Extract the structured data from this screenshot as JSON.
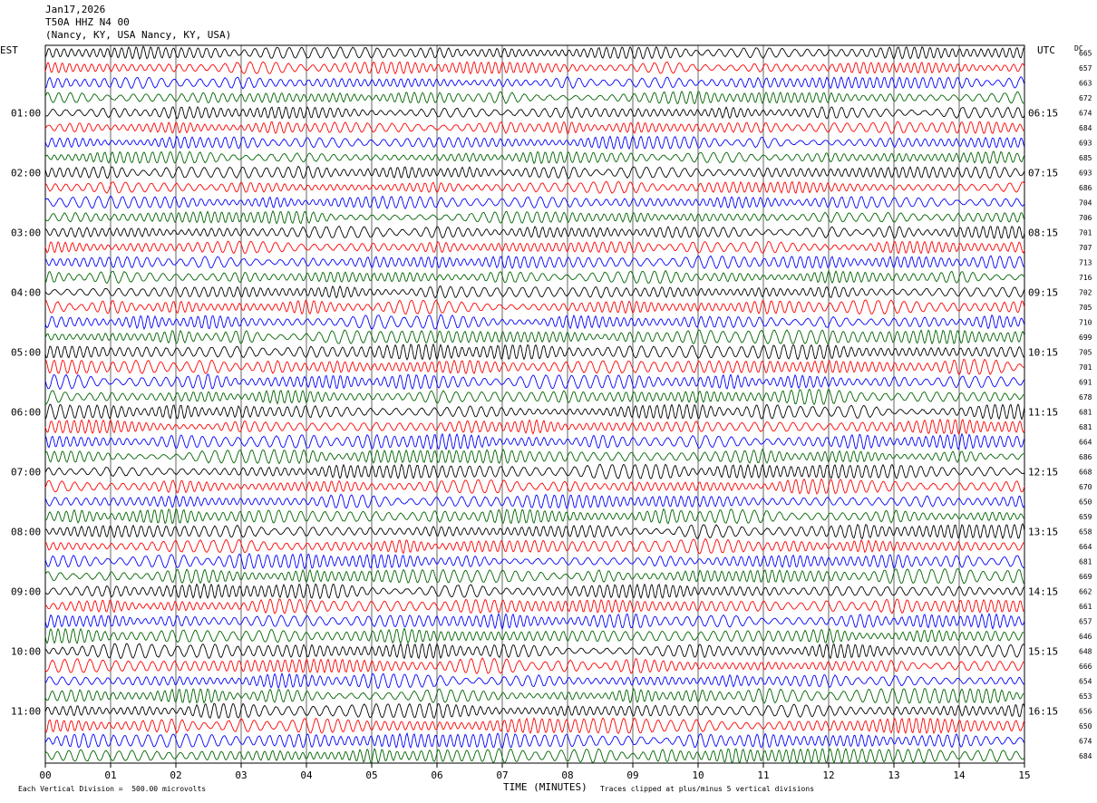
{
  "header": {
    "date": "Jan17,2026",
    "station": "T50A HHZ N4 00",
    "location": "(Nancy, KY, USA Nancy, KY, USA)"
  },
  "left_axis_title": "EST",
  "right_axis_title": "UTC",
  "dc_title": "DC",
  "footer": {
    "xlabel": "TIME (MINUTES)",
    "scale_note": "Each Vertical Division =  500.00 microvolts",
    "clip_note": "Traces clipped at plus/minus 5 vertical divisions"
  },
  "chart_data": {
    "type": "line",
    "title": "",
    "xlabel": "TIME (MINUTES)",
    "ylabel": "",
    "xlim": [
      0,
      15
    ],
    "x_ticks": [
      "00",
      "01",
      "02",
      "03",
      "04",
      "05",
      "06",
      "07",
      "08",
      "09",
      "10",
      "11",
      "12",
      "13",
      "14",
      "15"
    ],
    "grid": true,
    "trace_colors": [
      "#000000",
      "#ff0000",
      "#0000ff",
      "#006400"
    ],
    "left_time_labels": [
      {
        "row": 4,
        "label": "01:00"
      },
      {
        "row": 8,
        "label": "02:00"
      },
      {
        "row": 12,
        "label": "03:00"
      },
      {
        "row": 16,
        "label": "04:00"
      },
      {
        "row": 20,
        "label": "05:00"
      },
      {
        "row": 24,
        "label": "06:00"
      },
      {
        "row": 28,
        "label": "07:00"
      },
      {
        "row": 32,
        "label": "08:00"
      },
      {
        "row": 36,
        "label": "09:00"
      },
      {
        "row": 40,
        "label": "10:00"
      },
      {
        "row": 44,
        "label": "11:00"
      }
    ],
    "right_time_labels": [
      {
        "row": 4,
        "label": "06:15"
      },
      {
        "row": 8,
        "label": "07:15"
      },
      {
        "row": 12,
        "label": "08:15"
      },
      {
        "row": 16,
        "label": "09:15"
      },
      {
        "row": 20,
        "label": "10:15"
      },
      {
        "row": 24,
        "label": "11:15"
      },
      {
        "row": 28,
        "label": "12:15"
      },
      {
        "row": 32,
        "label": "13:15"
      },
      {
        "row": 36,
        "label": "14:15"
      },
      {
        "row": 40,
        "label": "15:15"
      },
      {
        "row": 44,
        "label": "16:15"
      }
    ],
    "dc_offsets": [
      "665",
      "657",
      "663",
      "672",
      "674",
      "684",
      "693",
      "685",
      "693",
      "686",
      "704",
      "706",
      "701",
      "707",
      "713",
      "716",
      "702",
      "705",
      "710",
      "699",
      "705",
      "701",
      "691",
      "678",
      "681",
      "681",
      "664",
      "686",
      "668",
      "670",
      "650",
      "659",
      "658",
      "664",
      "681",
      "669",
      "662",
      "661",
      "657",
      "646",
      "648",
      "666",
      "654",
      "653",
      "656",
      "650",
      "674",
      "684"
    ]
  }
}
